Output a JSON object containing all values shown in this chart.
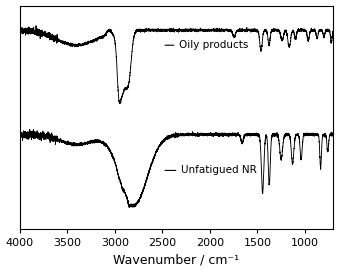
{
  "xlabel": "Wavenumber / cm⁻¹",
  "xlim": [
    4000,
    700
  ],
  "xticks": [
    4000,
    3500,
    3000,
    2500,
    2000,
    1500,
    1000
  ],
  "xtick_labels": [
    "4000",
    "3500",
    "3000",
    "2500",
    "2000",
    "1500",
    "1000"
  ],
  "label_oily": "Oily products",
  "label_nr": "Unfatigued NR",
  "line_color": "#000000",
  "background_color": "#ffffff",
  "fontsize_label": 9,
  "fontsize_tick": 8,
  "fontsize_annot": 7.5
}
